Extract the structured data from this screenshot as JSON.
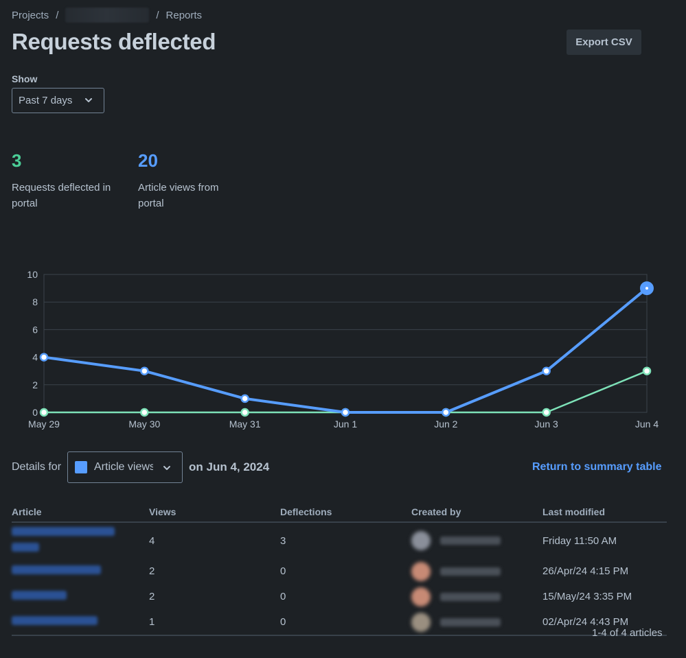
{
  "breadcrumb": {
    "projects": "Projects",
    "separator": "/",
    "reports": "Reports"
  },
  "page_title": "Requests deflected",
  "export_button": "Export CSV",
  "filter": {
    "label": "Show",
    "value": "Past 7 days"
  },
  "metrics": {
    "deflected": {
      "value": "3",
      "label": "Requests deflected in portal"
    },
    "views": {
      "value": "20",
      "label": "Article views from portal"
    }
  },
  "colors": {
    "views": "#579dff",
    "deflections": "#7ee2b8",
    "background": "#1d2125",
    "link": "#579dff"
  },
  "chart_data": {
    "type": "line",
    "categories": [
      "May 29",
      "May 30",
      "May 31",
      "Jun 1",
      "Jun 2",
      "Jun 3",
      "Jun 4"
    ],
    "series": [
      {
        "values": [
          4,
          3,
          1,
          0,
          0,
          3,
          9
        ],
        "color": "#579dff"
      },
      {
        "values": [
          0,
          0,
          0,
          0,
          0,
          0,
          3
        ],
        "color": "#7ee2b8"
      }
    ],
    "ylim": [
      0,
      10
    ],
    "yticks": [
      0,
      2,
      4,
      6,
      8,
      10
    ],
    "grid": true,
    "highlighted_point": {
      "series": 0,
      "index": 6
    }
  },
  "details": {
    "label": "Details for",
    "series_select": "Article views",
    "date_label": "on Jun 4, 2024",
    "return_link": "Return to summary table"
  },
  "table": {
    "headers": {
      "article": "Article",
      "views": "Views",
      "deflections": "Deflections",
      "created_by": "Created by",
      "last_modified": "Last modified"
    },
    "rows": [
      {
        "views": "4",
        "deflections": "3",
        "last_modified": "Friday 11:50 AM",
        "avatar_color": "#8a8f9a"
      },
      {
        "views": "2",
        "deflections": "0",
        "last_modified": "26/Apr/24 4:15 PM",
        "avatar_color": "#c78a75"
      },
      {
        "views": "2",
        "deflections": "0",
        "last_modified": "15/May/24 3:35 PM",
        "avatar_color": "#c78a75"
      },
      {
        "views": "1",
        "deflections": "0",
        "last_modified": "02/Apr/24 4:43 PM",
        "avatar_color": "#9a8f80"
      }
    ]
  },
  "pagination": "1-4 of 4 articles"
}
